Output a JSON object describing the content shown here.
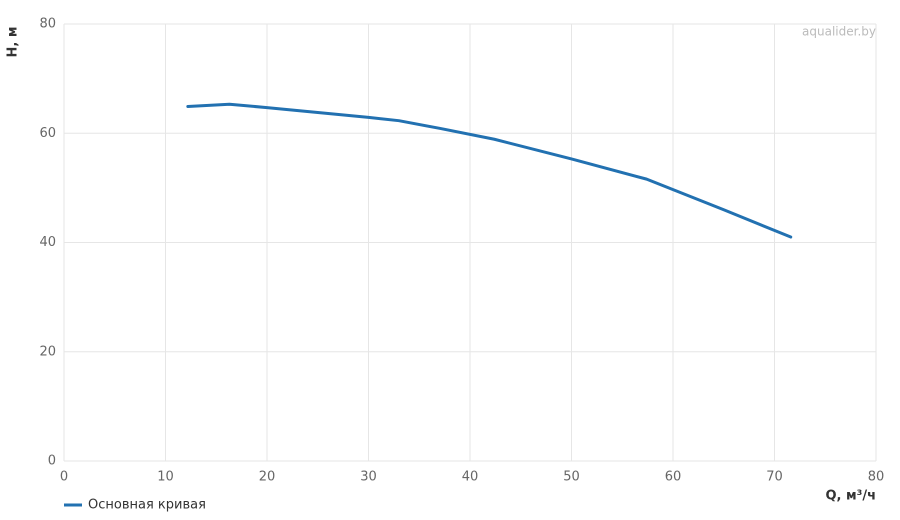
{
  "chart_data": {
    "type": "line",
    "x_label": "Q, м³/ч",
    "y_label": "H, м",
    "watermark": "aqualider.by",
    "x": [
      12.2,
      16.3,
      20,
      25,
      30,
      33,
      37,
      42.4,
      50,
      57.4,
      65,
      71.6
    ],
    "series": [
      {
        "name": "Основная кривая",
        "color": "#2271b1",
        "values": [
          64.9,
          65.3,
          64.7,
          63.8,
          62.9,
          62.3,
          60.9,
          58.9,
          55.3,
          51.6,
          46,
          41
        ]
      }
    ],
    "xlim": [
      0,
      80
    ],
    "xticks": [
      0,
      10,
      20,
      30,
      40,
      50,
      60,
      70,
      80
    ],
    "ylim": [
      0,
      80
    ],
    "yticks": [
      0,
      20,
      40,
      60,
      80
    ],
    "grid": true,
    "legend": "bottom-left"
  }
}
